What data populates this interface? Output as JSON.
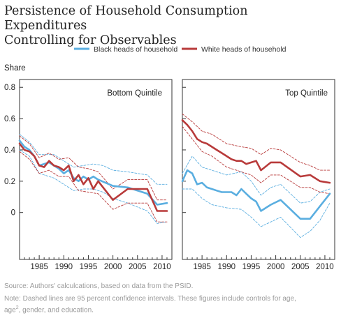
{
  "title_lines": [
    "Persistence of Household Consumption Expenditures",
    "Controlling for Observables"
  ],
  "source": "Source: Authors' calculcations, based on data from the PSID.",
  "note_line1": "Note: Dashed lines are 95 percent confidence intervals. These figures include controls for age,",
  "note_line2_pre": "age",
  "note_line2_sup": "2",
  "note_line2_post": ", gender, and education.",
  "colors": {
    "black": "#5aaee0",
    "white": "#b83a3a",
    "frame": "#333333",
    "tick": "#333333"
  },
  "chart_data": [
    {
      "type": "line",
      "title": "Bottom Quintile",
      "ylabel": "Share",
      "ylim": [
        -0.3,
        0.85
      ],
      "xlim": [
        1981,
        2012
      ],
      "yticks": [
        0,
        0.2,
        0.4,
        0.6,
        0.8
      ],
      "ytick_labels": [
        "0",
        "0.2",
        "0.4",
        "0.6",
        "0.8"
      ],
      "xticks": [
        1985,
        1990,
        1995,
        2000,
        2005,
        2010
      ],
      "legend": "top",
      "series": [
        {
          "name": "Black heads of household",
          "color": "#5aaee0",
          "style": "solid",
          "x": [
            1981,
            1982,
            1983,
            1984,
            1985,
            1986,
            1987,
            1988,
            1989,
            1990,
            1991,
            1992,
            1993,
            1994,
            1995,
            1996,
            1997,
            2000,
            2003,
            2007,
            2009,
            2011
          ],
          "y": [
            0.46,
            0.42,
            0.4,
            0.36,
            0.3,
            0.31,
            0.32,
            0.3,
            0.28,
            0.25,
            0.27,
            0.22,
            0.2,
            0.23,
            0.21,
            0.23,
            0.21,
            0.17,
            0.16,
            0.12,
            0.05,
            0.06
          ]
        },
        {
          "name": "White heads of household",
          "color": "#b83a3a",
          "style": "solid",
          "x": [
            1981,
            1982,
            1983,
            1984,
            1985,
            1986,
            1987,
            1988,
            1989,
            1990,
            1991,
            1992,
            1993,
            1994,
            1995,
            1996,
            1997,
            2000,
            2003,
            2007,
            2009,
            2011
          ],
          "y": [
            0.44,
            0.4,
            0.39,
            0.36,
            0.3,
            0.29,
            0.33,
            0.3,
            0.29,
            0.27,
            0.3,
            0.2,
            0.24,
            0.18,
            0.22,
            0.15,
            0.2,
            0.08,
            0.15,
            0.15,
            0.01,
            0.01
          ]
        },
        {
          "name": "",
          "color": "#5aaee0",
          "style": "dashed",
          "x": [
            1981,
            1983,
            1985,
            1988,
            1990,
            1992,
            1994,
            1996,
            1998,
            2000,
            2003,
            2007,
            2009,
            2011
          ],
          "y": [
            0.5,
            0.45,
            0.37,
            0.37,
            0.33,
            0.29,
            0.3,
            0.31,
            0.3,
            0.27,
            0.26,
            0.24,
            0.18,
            0.18
          ]
        },
        {
          "name": "",
          "color": "#5aaee0",
          "style": "dashed",
          "x": [
            1981,
            1983,
            1985,
            1988,
            1990,
            1992,
            1994,
            1996,
            1998,
            2000,
            2003,
            2007,
            2009,
            2011
          ],
          "y": [
            0.4,
            0.36,
            0.25,
            0.22,
            0.18,
            0.14,
            0.15,
            0.15,
            0.13,
            0.09,
            0.06,
            0.01,
            -0.07,
            -0.06
          ]
        },
        {
          "name": "",
          "color": "#b83a3a",
          "style": "dashed",
          "x": [
            1981,
            1983,
            1985,
            1987,
            1989,
            1991,
            1993,
            1995,
            1997,
            2000,
            2003,
            2007,
            2009,
            2011
          ],
          "y": [
            0.49,
            0.44,
            0.35,
            0.38,
            0.34,
            0.35,
            0.29,
            0.28,
            0.26,
            0.15,
            0.21,
            0.21,
            0.08,
            0.08
          ]
        },
        {
          "name": "",
          "color": "#b83a3a",
          "style": "dashed",
          "x": [
            1981,
            1983,
            1985,
            1987,
            1989,
            1991,
            1993,
            1995,
            1997,
            2000,
            2003,
            2007,
            2009,
            2011
          ],
          "y": [
            0.39,
            0.34,
            0.25,
            0.27,
            0.23,
            0.23,
            0.14,
            0.13,
            0.12,
            0.02,
            0.06,
            0.06,
            -0.06,
            -0.06
          ]
        }
      ]
    },
    {
      "type": "line",
      "title": "Top Quintile",
      "ylim": [
        -0.3,
        0.85
      ],
      "xlim": [
        1981,
        2012
      ],
      "xticks": [
        1985,
        1990,
        1995,
        2000,
        2005,
        2010
      ],
      "series": [
        {
          "name": "Black heads of household",
          "color": "#5aaee0",
          "style": "solid",
          "x": [
            1981,
            1982,
            1983,
            1984,
            1985,
            1986,
            1987,
            1988,
            1989,
            1990,
            1991,
            1992,
            1993,
            1994,
            1995,
            1996,
            1997,
            1999,
            2001,
            2005,
            2007,
            2009,
            2011
          ],
          "y": [
            0.2,
            0.27,
            0.25,
            0.18,
            0.19,
            0.16,
            0.15,
            0.14,
            0.13,
            0.13,
            0.13,
            0.11,
            0.15,
            0.12,
            0.09,
            0.07,
            0.01,
            0.05,
            0.08,
            -0.04,
            -0.04,
            0.04,
            0.12
          ]
        },
        {
          "name": "White heads of household",
          "color": "#b83a3a",
          "style": "solid",
          "x": [
            1981,
            1982,
            1983,
            1984,
            1985,
            1986,
            1987,
            1988,
            1989,
            1990,
            1991,
            1992,
            1993,
            1994,
            1995,
            1996,
            1997,
            1999,
            2001,
            2005,
            2007,
            2009,
            2011
          ],
          "y": [
            0.59,
            0.56,
            0.52,
            0.47,
            0.45,
            0.44,
            0.42,
            0.4,
            0.38,
            0.36,
            0.34,
            0.33,
            0.33,
            0.31,
            0.32,
            0.33,
            0.27,
            0.32,
            0.32,
            0.23,
            0.24,
            0.2,
            0.19
          ]
        },
        {
          "name": "",
          "color": "#5aaee0",
          "style": "dashed",
          "x": [
            1981,
            1983,
            1985,
            1987,
            1990,
            1993,
            1995,
            1997,
            1999,
            2001,
            2005,
            2007,
            2009,
            2011
          ],
          "y": [
            0.25,
            0.36,
            0.29,
            0.27,
            0.24,
            0.26,
            0.2,
            0.11,
            0.16,
            0.18,
            0.06,
            0.07,
            0.13,
            0.15
          ]
        },
        {
          "name": "",
          "color": "#5aaee0",
          "style": "dashed",
          "x": [
            1981,
            1983,
            1985,
            1987,
            1990,
            1993,
            1995,
            1997,
            1999,
            2001,
            2005,
            2007,
            2009,
            2011
          ],
          "y": [
            0.15,
            0.15,
            0.09,
            0.05,
            0.03,
            0.02,
            -0.03,
            -0.09,
            -0.06,
            -0.03,
            -0.16,
            -0.12,
            -0.05,
            0.06
          ]
        },
        {
          "name": "",
          "color": "#b83a3a",
          "style": "dashed",
          "x": [
            1981,
            1983,
            1985,
            1987,
            1990,
            1993,
            1995,
            1997,
            1999,
            2001,
            2005,
            2007,
            2009,
            2011
          ],
          "y": [
            0.63,
            0.58,
            0.52,
            0.5,
            0.44,
            0.42,
            0.41,
            0.37,
            0.41,
            0.4,
            0.32,
            0.3,
            0.27,
            0.27
          ]
        },
        {
          "name": "",
          "color": "#b83a3a",
          "style": "dashed",
          "x": [
            1981,
            1983,
            1985,
            1987,
            1990,
            1993,
            1995,
            1997,
            1999,
            2001,
            2005,
            2007,
            2009,
            2011
          ],
          "y": [
            0.55,
            0.47,
            0.39,
            0.36,
            0.29,
            0.26,
            0.24,
            0.19,
            0.24,
            0.24,
            0.16,
            0.16,
            0.13,
            0.12
          ]
        }
      ]
    }
  ]
}
